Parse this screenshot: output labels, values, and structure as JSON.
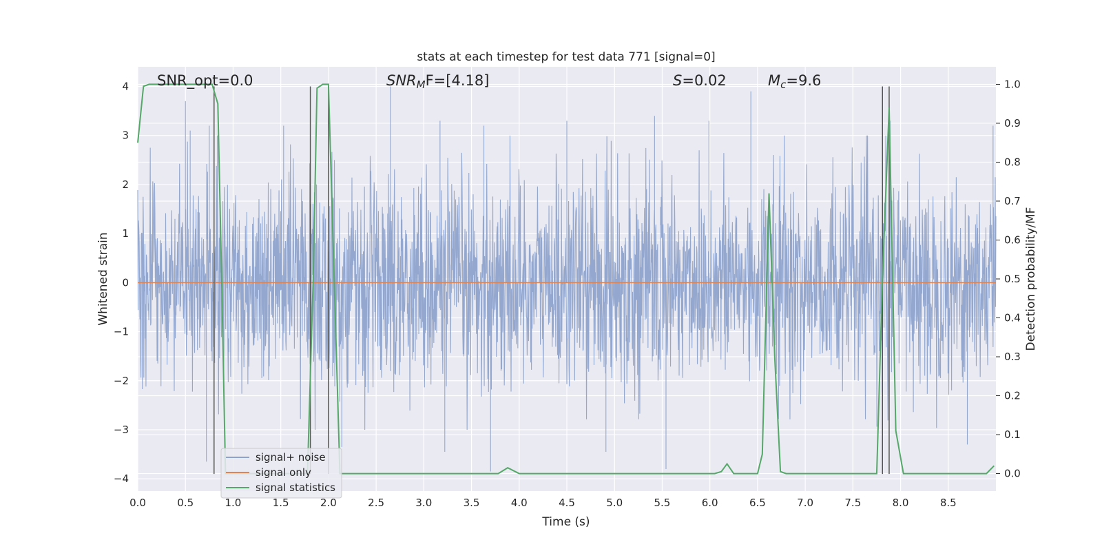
{
  "chart_data": {
    "type": "line",
    "title": "stats at each timestep for test data 771 [signal=0]",
    "xlabel": "Time (s)",
    "ylabel": "Whitened strain",
    "ylabel_right": "Detection probability/MF",
    "xlim": [
      0,
      9.0
    ],
    "ylim": [
      -4.25,
      4.4
    ],
    "ylim_right": [
      -0.045,
      1.045
    ],
    "x_ticks": [
      0.0,
      0.5,
      1.0,
      1.5,
      2.0,
      2.5,
      3.0,
      3.5,
      4.0,
      4.5,
      5.0,
      5.5,
      6.0,
      6.5,
      7.0,
      7.5,
      8.0,
      8.5
    ],
    "x_tick_labels": [
      "0.0",
      "0.5",
      "1.0",
      "1.5",
      "2.0",
      "2.5",
      "3.0",
      "3.5",
      "4.0",
      "4.5",
      "5.0",
      "5.5",
      "6.0",
      "6.5",
      "7.0",
      "7.5",
      "8.0",
      "8.5"
    ],
    "y_ticks": [
      -4,
      -3,
      -2,
      -1,
      0,
      1,
      2,
      3,
      4
    ],
    "y_tick_labels": [
      "−4",
      "−3",
      "−2",
      "−1",
      "0",
      "1",
      "2",
      "3",
      "4"
    ],
    "y_ticks_right": [
      0.0,
      0.1,
      0.2,
      0.3,
      0.4,
      0.5,
      0.6,
      0.7,
      0.8,
      0.9,
      1.0
    ],
    "y_tick_labels_right": [
      "0.0",
      "0.1",
      "0.2",
      "0.3",
      "0.4",
      "0.5",
      "0.6",
      "0.7",
      "0.8",
      "0.9",
      "1.0"
    ],
    "grid": true,
    "annotations": {
      "snr_opt": "SNR_opt=0.0",
      "snr_mf_base": "SNR",
      "snr_mf_sub": "M",
      "snr_mf_rest": "F=[4.18]",
      "s_base": "S",
      "s_rest": "=0.02",
      "mc_base": "M",
      "mc_sub": "c",
      "mc_rest": "=9.6"
    },
    "legend": {
      "placement": "lower-left",
      "entries": [
        "signal+ noise",
        "signal only",
        "signal statistics"
      ]
    },
    "colors": {
      "noise": "#8ea3cc",
      "signal_only": "#dd8452",
      "statistics": "#55a868",
      "vlines": "#555555",
      "background": "#eaeaf2"
    },
    "noise": {
      "series": "signal+ noise",
      "description_env": "random whitened noise, typical amplitude ~1.5, peaks up to ~4",
      "spikes": [
        {
          "x": 0.5,
          "y": 3.7
        },
        {
          "x": 0.55,
          "y": 3.1
        },
        {
          "x": 0.75,
          "y": 3.2
        },
        {
          "x": 1.53,
          "y": 3.2
        },
        {
          "x": 2.65,
          "y": 4.0
        },
        {
          "x": 3.17,
          "y": 3.3
        },
        {
          "x": 3.63,
          "y": 3.2
        },
        {
          "x": 4.5,
          "y": 3.3
        },
        {
          "x": 5.42,
          "y": 3.4
        },
        {
          "x": 5.99,
          "y": 3.3
        },
        {
          "x": 6.43,
          "y": 3.9
        },
        {
          "x": 7.89,
          "y": 3.3
        },
        {
          "x": 8.97,
          "y": 3.2
        },
        {
          "x": 0.72,
          "y": -3.65
        },
        {
          "x": 3.22,
          "y": -3.45
        },
        {
          "x": 3.7,
          "y": -3.85
        },
        {
          "x": 5.54,
          "y": -3.8
        },
        {
          "x": 4.91,
          "y": -3.45
        },
        {
          "x": 2.14,
          "y": -3.35
        },
        {
          "x": 8.7,
          "y": -3.3
        }
      ]
    },
    "signal_only": {
      "series": "signal only",
      "x": [
        0.0,
        9.0
      ],
      "y": [
        0.0,
        0.0
      ]
    },
    "statistics": {
      "series": "signal statistics",
      "x": [
        0.0,
        0.06,
        0.12,
        0.2,
        0.3,
        0.4,
        0.5,
        0.6,
        0.7,
        0.78,
        0.84,
        0.88,
        0.92,
        0.98,
        1.05,
        1.2,
        1.4,
        1.6,
        1.78,
        1.84,
        1.88,
        1.94,
        2.0,
        2.06,
        2.12,
        2.2,
        2.4,
        2.8,
        3.2,
        3.6,
        3.78,
        3.88,
        4.0,
        4.4,
        4.8,
        5.2,
        5.6,
        6.05,
        6.12,
        6.18,
        6.25,
        6.5,
        6.55,
        6.62,
        6.68,
        6.74,
        6.8,
        7.2,
        7.6,
        7.75,
        7.81,
        7.88,
        7.95,
        8.03,
        8.15,
        8.5,
        8.9,
        8.98
      ],
      "y": [
        0.85,
        0.995,
        1.0,
        1.0,
        1.0,
        1.0,
        1.0,
        1.0,
        1.0,
        1.0,
        0.95,
        0.5,
        0.0,
        0.0,
        0.0,
        0.0,
        0.0,
        0.0,
        0.0,
        0.5,
        0.99,
        1.0,
        1.0,
        0.5,
        0.0,
        0.0,
        0.0,
        0.0,
        0.0,
        0.0,
        0.0,
        0.015,
        0.0,
        0.0,
        0.0,
        0.0,
        0.0,
        0.0,
        0.005,
        0.025,
        0.0,
        0.0,
        0.05,
        0.72,
        0.3,
        0.005,
        0.0,
        0.0,
        0.0,
        0.0,
        0.5,
        0.94,
        0.11,
        0.0,
        0.0,
        0.0,
        0.0,
        0.02
      ]
    },
    "vlines": [
      {
        "x": 0.8,
        "y_from": -3.9,
        "y_to": 4.0
      },
      {
        "x": 1.81,
        "y_from": -3.9,
        "y_to": 4.0
      },
      {
        "x": 2.0,
        "y_from": -3.9,
        "y_to": 4.0
      },
      {
        "x": 7.81,
        "y_from": -3.9,
        "y_to": 4.0
      },
      {
        "x": 7.88,
        "y_from": -3.9,
        "y_to": 4.0
      }
    ]
  }
}
